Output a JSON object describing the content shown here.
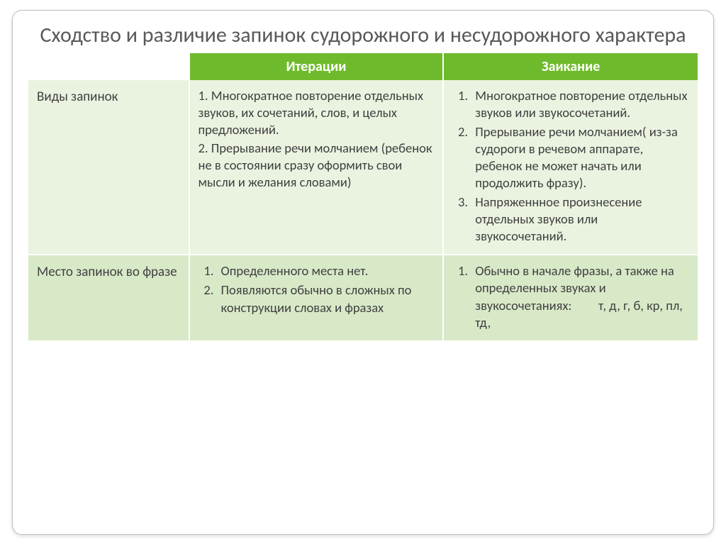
{
  "colors": {
    "header_bg": "#6fba2c",
    "header_text": "#ffffff",
    "row_a_bg": "#eaf3e0",
    "row_b_bg": "#d8e9c8",
    "body_text": "#404040",
    "title_text": "#595959",
    "slide_border": "#bfbfbf"
  },
  "typography": {
    "title_fontsize": 30,
    "header_fontsize": 20,
    "cell_fontsize": 18.5,
    "font_family": "Calibri"
  },
  "layout": {
    "col_widths_pct": [
      24,
      38,
      38
    ],
    "slide_border_radius": 14
  },
  "title": "Сходство и различие запинок судорожного и несудорожного характера",
  "table": {
    "headers": {
      "empty": "",
      "col2": "Итерации",
      "col3": "Заикание"
    },
    "rows": [
      {
        "label": "Виды запинок",
        "col2_style": "plain",
        "col2_items": [
          "1. Многократное повторение отдельных звуков, их сочетаний, слов, и целых предложений.",
          "2. Прерывание речи молчанием (ребенок не в состоянии сразу оформить свои мысли и желания словами)"
        ],
        "col3_style": "ol",
        "col3_items": [
          "Многократное повторение отдельных звуков или звукосочетаний.",
          "Прерывание речи молчанием( из-за судороги в речевом аппарате, ребенок не может начать или продолжить фразу).",
          "Напряженнное произнесение отдельных звуков или звукосочетаний."
        ]
      },
      {
        "label": "Место запинок во фразе",
        "col2_style": "ol",
        "col2_items": [
          "Определенного места нет.",
          "Появляются обычно в сложных по конструкции словах и фразах"
        ],
        "col3_style": "ol",
        "col3_items": [
          "Обычно в начале фразы, а также на определенных звуках и звукосочетаниях:         т, д, г, б, кр, пл, тд,"
        ]
      }
    ]
  }
}
